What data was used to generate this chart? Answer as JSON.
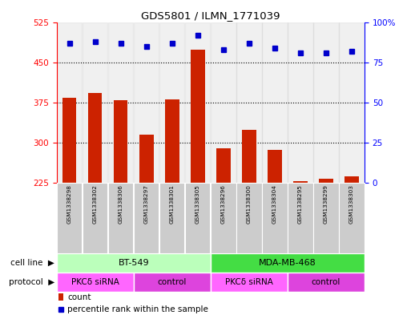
{
  "title": "GDS5801 / ILMN_1771039",
  "samples": [
    "GSM1338298",
    "GSM1338302",
    "GSM1338306",
    "GSM1338297",
    "GSM1338301",
    "GSM1338305",
    "GSM1338296",
    "GSM1338300",
    "GSM1338304",
    "GSM1338295",
    "GSM1338299",
    "GSM1338303"
  ],
  "counts": [
    383,
    393,
    379,
    315,
    381,
    473,
    290,
    323,
    287,
    228,
    233,
    237
  ],
  "percentiles": [
    87,
    88,
    87,
    85,
    87,
    92,
    83,
    87,
    84,
    81,
    81,
    82
  ],
  "ylim_left": [
    225,
    525
  ],
  "ylim_right": [
    0,
    100
  ],
  "yticks_left": [
    225,
    300,
    375,
    450,
    525
  ],
  "yticks_right": [
    0,
    25,
    50,
    75,
    100
  ],
  "bar_color": "#cc2200",
  "dot_color": "#0000cc",
  "sample_bg_color": "#cccccc",
  "cell_line_groups": [
    {
      "label": "BT-549",
      "start": 0,
      "end": 6,
      "color": "#bbffbb"
    },
    {
      "label": "MDA-MB-468",
      "start": 6,
      "end": 12,
      "color": "#44dd44"
    }
  ],
  "protocol_groups": [
    {
      "label": "PKCδ siRNA",
      "start": 0,
      "end": 3,
      "color": "#ff66ff"
    },
    {
      "label": "control",
      "start": 3,
      "end": 6,
      "color": "#dd44dd"
    },
    {
      "label": "PKCδ siRNA",
      "start": 6,
      "end": 9,
      "color": "#ff66ff"
    },
    {
      "label": "control",
      "start": 9,
      "end": 12,
      "color": "#dd44dd"
    }
  ],
  "grid_vals": [
    300,
    375,
    450
  ],
  "cell_line_label": "cell line",
  "protocol_label": "protocol",
  "legend_count": "count",
  "legend_pct": "percentile rank within the sample",
  "arrow_color": "#888888"
}
